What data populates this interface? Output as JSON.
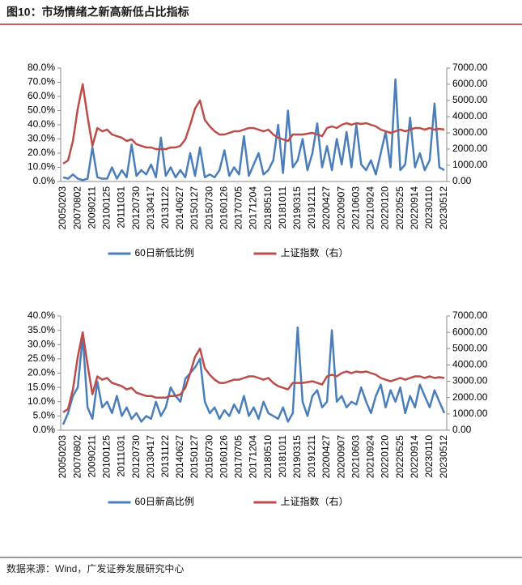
{
  "header": {
    "title": "图10：市场情绪之新高新低占比指标"
  },
  "source": "数据来源：Wind，广发证券发展研究中心",
  "chart_data": [
    {
      "type": "line",
      "categories": [
        "20050203",
        null,
        null,
        "20070802",
        null,
        null,
        "20090211",
        null,
        null,
        "20100125",
        null,
        null,
        "20111031",
        null,
        null,
        "20120730",
        null,
        null,
        "20130417",
        null,
        null,
        "20131122",
        null,
        null,
        "20140627",
        null,
        null,
        "20150127",
        null,
        null,
        "20150730",
        null,
        null,
        "20160126",
        null,
        null,
        "20170705",
        null,
        null,
        "20171204",
        null,
        null,
        "20180510",
        null,
        null,
        "20181011",
        null,
        null,
        "20190315",
        null,
        null,
        "20191211",
        null,
        null,
        "20200427",
        null,
        null,
        "20200907",
        null,
        null,
        "20210603",
        null,
        null,
        "20210924",
        null,
        null,
        "20220120",
        null,
        null,
        "20220525",
        null,
        null,
        "20220914",
        null,
        null,
        "20230110",
        null,
        null,
        "20230512"
      ],
      "ylim": [
        0,
        80
      ],
      "yticks": [
        {
          "value": 0,
          "label": "0.0%"
        },
        {
          "value": 10,
          "label": "10.0%"
        },
        {
          "value": 20,
          "label": "20.0%"
        },
        {
          "value": 30,
          "label": "30.0%"
        },
        {
          "value": 40,
          "label": "40.0%"
        },
        {
          "value": 50,
          "label": "50.0%"
        },
        {
          "value": 60,
          "label": "60.0%"
        },
        {
          "value": 70,
          "label": "70.0%"
        },
        {
          "value": 80,
          "label": "80.0%"
        }
      ],
      "y2lim": [
        0,
        7000
      ],
      "y2ticks": [
        {
          "value": 0,
          "label": "0.00"
        },
        {
          "value": 1000,
          "label": "1000.00"
        },
        {
          "value": 2000,
          "label": "2000.00"
        },
        {
          "value": 3000,
          "label": "3000.00"
        },
        {
          "value": 4000,
          "label": "4000.00"
        },
        {
          "value": 5000,
          "label": "5000.00"
        },
        {
          "value": 6000,
          "label": "6000.00"
        },
        {
          "value": 7000,
          "label": "7000.00"
        }
      ],
      "legend": "bottom",
      "series": [
        {
          "name": "60日新低比例",
          "color": "#4a7ebb",
          "values": [
            3,
            2,
            5,
            2,
            1,
            2,
            24,
            3,
            2,
            2,
            10,
            2,
            8,
            3,
            26,
            4,
            8,
            5,
            12,
            3,
            31,
            4,
            10,
            3,
            8,
            3,
            20,
            4,
            24,
            3,
            5,
            3,
            8,
            22,
            4,
            10,
            5,
            32,
            4,
            12,
            20,
            5,
            8,
            15,
            40,
            6,
            50,
            10,
            15,
            30,
            8,
            20,
            41,
            10,
            25,
            8,
            30,
            12,
            35,
            10,
            40,
            12,
            8,
            15,
            5,
            20,
            35,
            10,
            72,
            8,
            12,
            45,
            10,
            20,
            8,
            15,
            55,
            10,
            8
          ]
        },
        {
          "name": "上证指数（右）",
          "color": "#be4b48",
          "axis": "y2",
          "values": [
            1100,
            1300,
            2500,
            4500,
            6000,
            4000,
            2200,
            3300,
            3100,
            3200,
            2900,
            2800,
            2700,
            2500,
            2600,
            2300,
            2200,
            2100,
            2100,
            2000,
            2000,
            2000,
            2100,
            2100,
            2200,
            2600,
            3500,
            4500,
            5000,
            3800,
            3400,
            3100,
            2900,
            2900,
            3000,
            3100,
            3100,
            3200,
            3300,
            3300,
            3200,
            3100,
            3200,
            2900,
            2700,
            2600,
            2500,
            2900,
            2900,
            2900,
            2950,
            3000,
            2900,
            2800,
            3300,
            3400,
            3300,
            3500,
            3600,
            3500,
            3600,
            3550,
            3600,
            3500,
            3400,
            3200,
            3100,
            3000,
            3100,
            3200,
            3100,
            3200,
            3300,
            3300,
            3200,
            3300,
            3200,
            3250,
            3200
          ]
        }
      ]
    },
    {
      "type": "line",
      "categories": [
        "20050203",
        null,
        null,
        "20070802",
        null,
        null,
        "20090211",
        null,
        null,
        "20100125",
        null,
        null,
        "20111031",
        null,
        null,
        "20120730",
        null,
        null,
        "20130417",
        null,
        null,
        "20131122",
        null,
        null,
        "20140627",
        null,
        null,
        "20150127",
        null,
        null,
        "20150730",
        null,
        null,
        "20160126",
        null,
        null,
        "20170705",
        null,
        null,
        "20171204",
        null,
        null,
        "20180510",
        null,
        null,
        "20181011",
        null,
        null,
        "20190315",
        null,
        null,
        "20191211",
        null,
        null,
        "20200427",
        null,
        null,
        "20200907",
        null,
        null,
        "20210603",
        null,
        null,
        "20210924",
        null,
        null,
        "20220120",
        null,
        null,
        "20220525",
        null,
        null,
        "20220914",
        null,
        null,
        "20230110",
        null,
        null,
        "20230512"
      ],
      "ylim": [
        0,
        40
      ],
      "yticks": [
        {
          "value": 0,
          "label": "0.0%"
        },
        {
          "value": 5,
          "label": "5.0%"
        },
        {
          "value": 10,
          "label": "10.0%"
        },
        {
          "value": 15,
          "label": "15.0%"
        },
        {
          "value": 20,
          "label": "20.0%"
        },
        {
          "value": 25,
          "label": "25.0%"
        },
        {
          "value": 30,
          "label": "30.0%"
        },
        {
          "value": 35,
          "label": "35.0%"
        },
        {
          "value": 40,
          "label": "40.0%"
        }
      ],
      "y2lim": [
        0,
        7000
      ],
      "y2ticks": [
        {
          "value": 0,
          "label": "0.00"
        },
        {
          "value": 1000,
          "label": "1000.00"
        },
        {
          "value": 2000,
          "label": "2000.00"
        },
        {
          "value": 3000,
          "label": "3000.00"
        },
        {
          "value": 4000,
          "label": "4000.00"
        },
        {
          "value": 5000,
          "label": "5000.00"
        },
        {
          "value": 6000,
          "label": "6000.00"
        },
        {
          "value": 7000,
          "label": "7000.00"
        }
      ],
      "legend": "bottom",
      "series": [
        {
          "name": "60日新高比例",
          "color": "#4a7ebb",
          "values": [
            2,
            6,
            12,
            15,
            33,
            8,
            4,
            17,
            8,
            10,
            6,
            12,
            5,
            8,
            4,
            6,
            3,
            5,
            4,
            10,
            5,
            8,
            15,
            12,
            10,
            18,
            20,
            22,
            25,
            10,
            6,
            8,
            4,
            7,
            5,
            9,
            6,
            12,
            5,
            8,
            4,
            10,
            6,
            5,
            4,
            8,
            3,
            6,
            36,
            10,
            5,
            12,
            14,
            8,
            10,
            35,
            10,
            12,
            8,
            10,
            9,
            15,
            10,
            6,
            12,
            16,
            8,
            14,
            10,
            15,
            6,
            12,
            8,
            16,
            12,
            8,
            14,
            10,
            6
          ]
        },
        {
          "name": "上证指数（右）",
          "color": "#be4b48",
          "axis": "y2",
          "values": [
            1100,
            1300,
            2500,
            4500,
            6000,
            4000,
            2200,
            3300,
            3100,
            3200,
            2900,
            2800,
            2700,
            2500,
            2600,
            2300,
            2200,
            2100,
            2100,
            2000,
            2000,
            2000,
            2100,
            2100,
            2200,
            2600,
            3500,
            4500,
            5000,
            3800,
            3400,
            3100,
            2900,
            2900,
            3000,
            3100,
            3100,
            3200,
            3300,
            3300,
            3200,
            3100,
            3200,
            2900,
            2700,
            2600,
            2500,
            2900,
            2900,
            2900,
            2950,
            3000,
            2900,
            2800,
            3300,
            3400,
            3300,
            3500,
            3600,
            3500,
            3600,
            3550,
            3600,
            3500,
            3400,
            3200,
            3100,
            3000,
            3100,
            3200,
            3100,
            3200,
            3300,
            3300,
            3200,
            3300,
            3200,
            3250,
            3200
          ]
        }
      ]
    }
  ]
}
